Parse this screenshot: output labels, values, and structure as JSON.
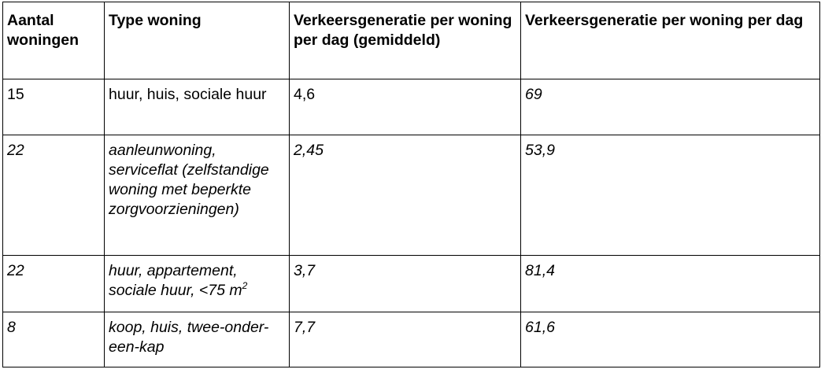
{
  "table": {
    "headers": [
      "Aantal woningen",
      "Type woning",
      "Verkeersgeneratie per woning per dag (gemiddeld)",
      "Verkeersgeneratie per woning per dag"
    ],
    "rows": [
      {
        "aantal": "15",
        "type": "huur, huis, sociale huur",
        "type_sup": "",
        "per_woning": "4,6",
        "totaal": "69",
        "italic_cols": [
          "totaal"
        ]
      },
      {
        "aantal": "22",
        "type": "aanleunwoning, serviceflat (zelfstandige woning met beperkte zorgvoorzieningen)",
        "type_sup": "",
        "per_woning": "2,45",
        "totaal": "53,9",
        "italic_cols": [
          "aantal",
          "type",
          "per_woning",
          "totaal"
        ]
      },
      {
        "aantal": "22",
        "type": "huur, appartement, sociale huur, <75 m",
        "type_sup": "2",
        "per_woning": "3,7",
        "totaal": "81,4",
        "italic_cols": [
          "aantal",
          "type",
          "per_woning",
          "totaal"
        ]
      },
      {
        "aantal": "8",
        "type": "koop, huis, twee-onder-een-kap",
        "type_sup": "",
        "per_woning": "7,7",
        "totaal": "61,6",
        "italic_cols": [
          "aantal",
          "type",
          "per_woning",
          "totaal"
        ]
      }
    ]
  }
}
